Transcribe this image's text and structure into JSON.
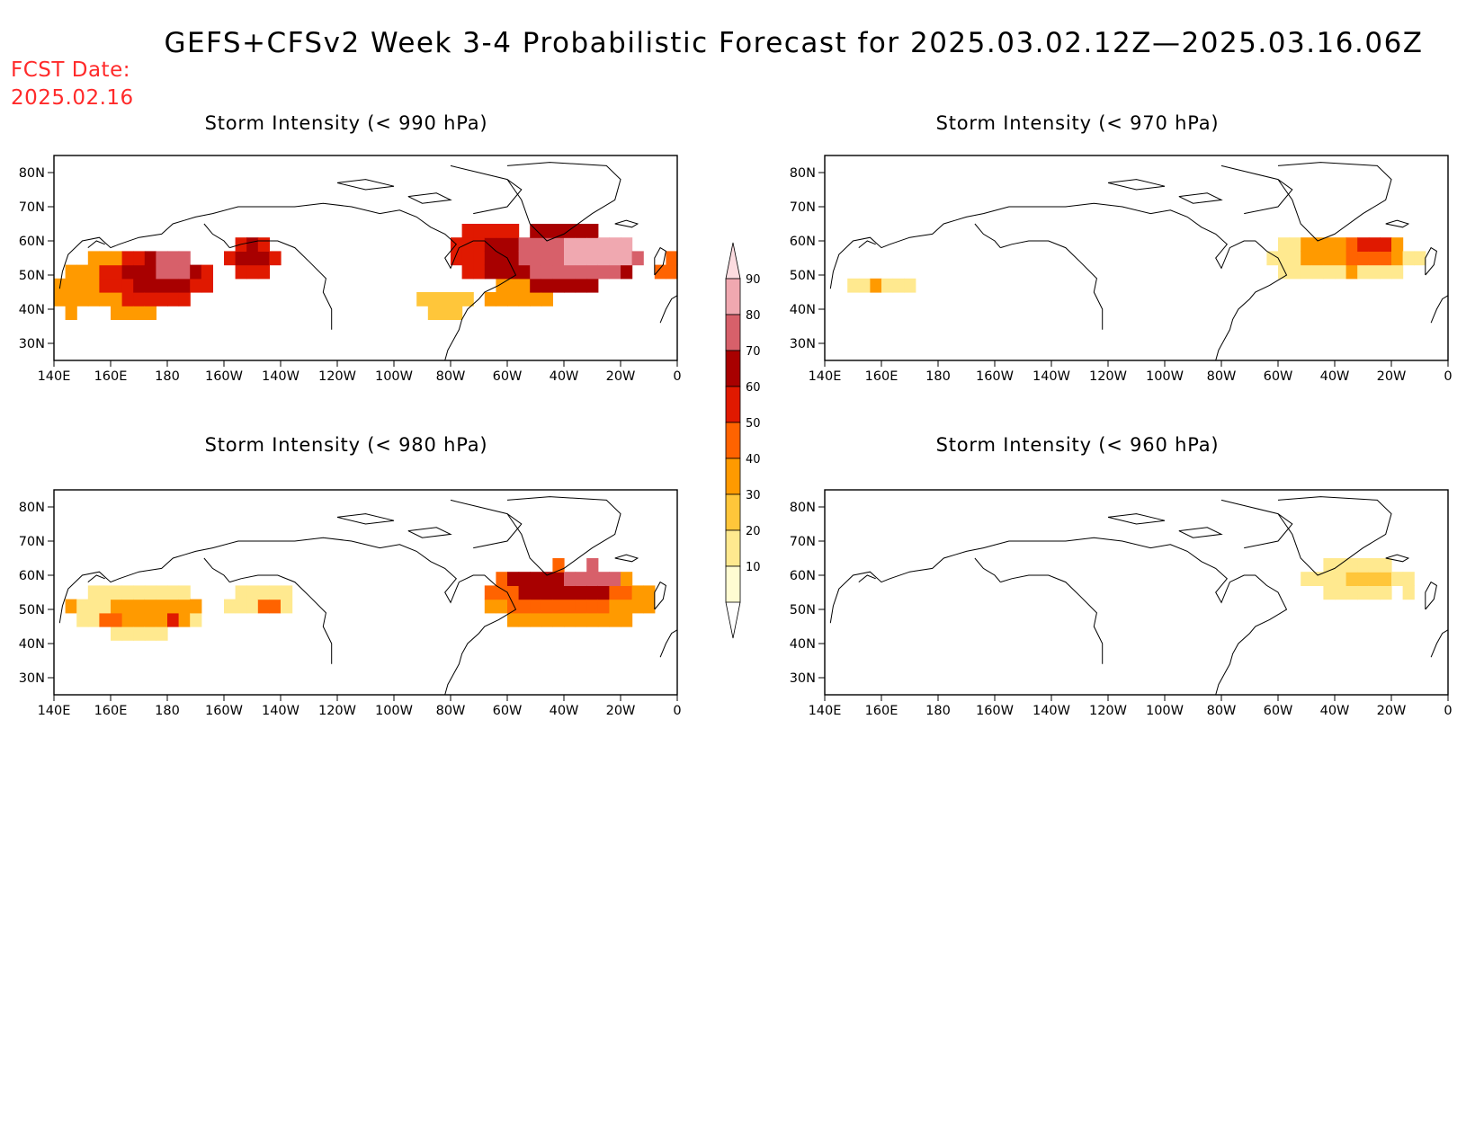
{
  "title": "GEFS+CFSv2 Week 3-4 Probabilistic Forecast for 2025.03.02.12Z—2025.03.16.06Z",
  "fcst_label": "FCST Date:",
  "fcst_date": "2025.02.16",
  "x_ticks": [
    "140E",
    "160E",
    "180",
    "160W",
    "140W",
    "120W",
    "100W",
    "80W",
    "60W",
    "40W",
    "20W",
    "0"
  ],
  "y_ticks": [
    "80N",
    "70N",
    "60N",
    "50N",
    "40N",
    "30N"
  ],
  "colorbar": {
    "levels": [
      "10",
      "20",
      "30",
      "40",
      "50",
      "60",
      "70",
      "80",
      "90"
    ],
    "colors": [
      "#fffcd2",
      "#ffe98f",
      "#ffc63a",
      "#ff9a00",
      "#ff6300",
      "#e01900",
      "#a80000",
      "#d7606a",
      "#f0a8b0",
      "#fcdce0"
    ]
  },
  "chart_data": [
    {
      "type": "heatmap",
      "title": "Storm Intensity (< 990 hPa)",
      "xlim": [
        140,
        360
      ],
      "ylim": [
        25,
        85
      ],
      "blobs": [
        {
          "lon": 168,
          "lat": 48,
          "rx": 22,
          "ry": 10,
          "level": 3
        },
        {
          "lon": 176,
          "lat": 49,
          "rx": 19,
          "ry": 8,
          "level": 5
        },
        {
          "lon": 178,
          "lat": 50,
          "rx": 13,
          "ry": 6,
          "level": 6
        },
        {
          "lon": 182,
          "lat": 52,
          "rx": 8,
          "ry": 4,
          "level": 7
        },
        {
          "lon": 146,
          "lat": 45,
          "rx": 6,
          "ry": 6,
          "level": 3
        },
        {
          "lon": 210,
          "lat": 55,
          "rx": 11,
          "ry": 5,
          "level": 5
        },
        {
          "lon": 210,
          "lat": 56,
          "rx": 6,
          "ry": 3,
          "level": 6
        },
        {
          "lon": 293,
          "lat": 57,
          "rx": 12,
          "ry": 10,
          "level": 5
        },
        {
          "lon": 300,
          "lat": 55,
          "rx": 9,
          "ry": 8,
          "level": 6
        },
        {
          "lon": 320,
          "lat": 55,
          "rx": 28,
          "ry": 9,
          "level": 6
        },
        {
          "lon": 325,
          "lat": 56,
          "rx": 22,
          "ry": 7,
          "level": 7
        },
        {
          "lon": 333,
          "lat": 57,
          "rx": 14,
          "ry": 5,
          "level": 8
        },
        {
          "lon": 304,
          "lat": 44,
          "rx": 12,
          "ry": 4,
          "level": 3
        },
        {
          "lon": 278,
          "lat": 42,
          "rx": 9,
          "ry": 4,
          "level": 2
        },
        {
          "lon": 357,
          "lat": 52,
          "rx": 4,
          "ry": 4,
          "level": 4
        }
      ]
    },
    {
      "type": "heatmap",
      "title": "Storm Intensity (< 970 hPa)",
      "xlim": [
        140,
        360
      ],
      "ylim": [
        25,
        85
      ],
      "blobs": [
        {
          "lon": 160,
          "lat": 47,
          "rx": 10,
          "ry": 4,
          "level": 1
        },
        {
          "lon": 157,
          "lat": 48,
          "rx": 3,
          "ry": 2,
          "level": 3
        },
        {
          "lon": 323,
          "lat": 55,
          "rx": 28,
          "ry": 7,
          "level": 1
        },
        {
          "lon": 326,
          "lat": 56,
          "rx": 20,
          "ry": 5,
          "level": 3
        },
        {
          "lon": 331,
          "lat": 57,
          "rx": 12,
          "ry": 3,
          "level": 4
        },
        {
          "lon": 334,
          "lat": 58,
          "rx": 5,
          "ry": 2,
          "level": 5
        }
      ]
    },
    {
      "type": "heatmap",
      "title": "Storm Intensity (< 980 hPa)",
      "xlim": [
        140,
        360
      ],
      "ylim": [
        25,
        85
      ],
      "blobs": [
        {
          "lon": 170,
          "lat": 50,
          "rx": 24,
          "ry": 8,
          "level": 1
        },
        {
          "lon": 175,
          "lat": 50,
          "rx": 16,
          "ry": 5,
          "level": 3
        },
        {
          "lon": 182,
          "lat": 47,
          "rx": 3,
          "ry": 2,
          "level": 5
        },
        {
          "lon": 161,
          "lat": 47,
          "rx": 3,
          "ry": 2,
          "level": 4
        },
        {
          "lon": 147,
          "lat": 52,
          "rx": 3,
          "ry": 2,
          "level": 3
        },
        {
          "lon": 213,
          "lat": 52,
          "rx": 12,
          "ry": 5,
          "level": 1
        },
        {
          "lon": 216,
          "lat": 51,
          "rx": 3,
          "ry": 2,
          "level": 4
        },
        {
          "lon": 322,
          "lat": 53,
          "rx": 30,
          "ry": 9,
          "level": 3
        },
        {
          "lon": 318,
          "lat": 56,
          "rx": 25,
          "ry": 7,
          "level": 4
        },
        {
          "lon": 320,
          "lat": 58,
          "rx": 20,
          "ry": 5,
          "level": 6
        },
        {
          "lon": 330,
          "lat": 60,
          "rx": 12,
          "ry": 3,
          "level": 7
        }
      ]
    },
    {
      "type": "heatmap",
      "title": "Storm Intensity (< 960 hPa)",
      "xlim": [
        140,
        360
      ],
      "ylim": [
        25,
        85
      ],
      "blobs": [
        {
          "lon": 328,
          "lat": 59,
          "rx": 20,
          "ry": 5,
          "level": 1
        },
        {
          "lon": 332,
          "lat": 60,
          "rx": 8,
          "ry": 3,
          "level": 2
        },
        {
          "lon": 345,
          "lat": 56,
          "rx": 3,
          "ry": 2,
          "level": 1
        }
      ]
    }
  ]
}
